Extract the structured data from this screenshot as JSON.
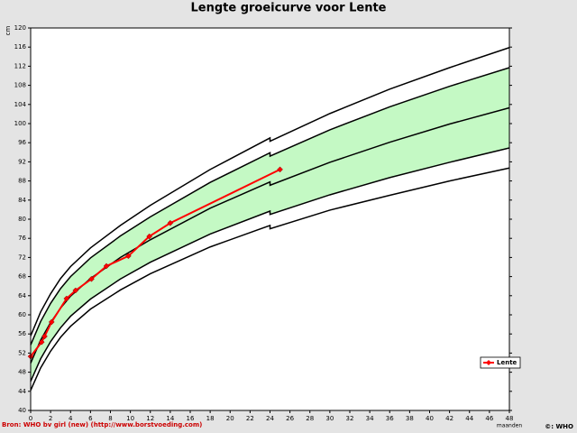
{
  "chart_data": {
    "type": "line",
    "title": "Lengte groeicurve voor Lente",
    "ylabel": "cm",
    "xlabel": "maanden",
    "source": "Bron: WHO bv girl (new) (http://www.borstvoeding.com)",
    "copyright": "©: WHO",
    "xlim": [
      0,
      48
    ],
    "ylim": [
      40,
      120
    ],
    "xticks": [
      0,
      2,
      4,
      6,
      8,
      10,
      12,
      14,
      16,
      18,
      20,
      22,
      24,
      26,
      28,
      30,
      32,
      34,
      36,
      38,
      40,
      42,
      44,
      46,
      48
    ],
    "yticks": [
      40,
      44,
      48,
      52,
      56,
      60,
      64,
      68,
      72,
      76,
      80,
      84,
      88,
      92,
      96,
      100,
      104,
      108,
      112,
      116,
      120
    ],
    "band_color": "#c4f9c4",
    "curve_color": "#000000",
    "curve_x": [
      0,
      1,
      2,
      3,
      4,
      6,
      9,
      12,
      18,
      24,
      24,
      30,
      36,
      42,
      48
    ],
    "curves": [
      {
        "values": [
          44.2,
          48.9,
          52.4,
          55.3,
          57.6,
          61.2,
          65.2,
          68.6,
          74.2,
          78.7,
          78.0,
          81.9,
          85.0,
          88.0,
          90.7
        ]
      },
      {
        "values": [
          46.1,
          50.8,
          54.4,
          57.3,
          59.7,
          63.3,
          67.5,
          71.0,
          76.9,
          81.7,
          81.0,
          85.1,
          88.7,
          91.9,
          94.9
        ]
      },
      {
        "values": [
          49.9,
          54.7,
          58.4,
          61.4,
          63.9,
          67.6,
          72.0,
          75.7,
          82.3,
          87.8,
          87.1,
          91.9,
          96.1,
          99.9,
          103.3
        ]
      },
      {
        "values": [
          53.7,
          58.6,
          62.4,
          65.5,
          68.0,
          71.9,
          76.5,
          80.5,
          87.7,
          93.9,
          93.2,
          98.7,
          103.5,
          107.8,
          111.7
        ]
      },
      {
        "values": [
          55.6,
          60.6,
          64.4,
          67.6,
          70.1,
          74.0,
          78.7,
          82.9,
          90.4,
          97.0,
          96.3,
          102.1,
          107.2,
          111.7,
          115.9
        ]
      }
    ],
    "legend": "lower right",
    "series": [
      {
        "name": "Lente",
        "color": "#ff0000",
        "x": [
          0,
          1.1,
          1.4,
          2.1,
          3.6,
          4.5,
          6.1,
          7.6,
          9.8,
          11.9,
          14,
          25
        ],
        "values": [
          51.3,
          54.3,
          55.5,
          58.5,
          63.4,
          65.1,
          67.5,
          70.2,
          72.3,
          76.4,
          79.2,
          90.4
        ]
      }
    ]
  }
}
